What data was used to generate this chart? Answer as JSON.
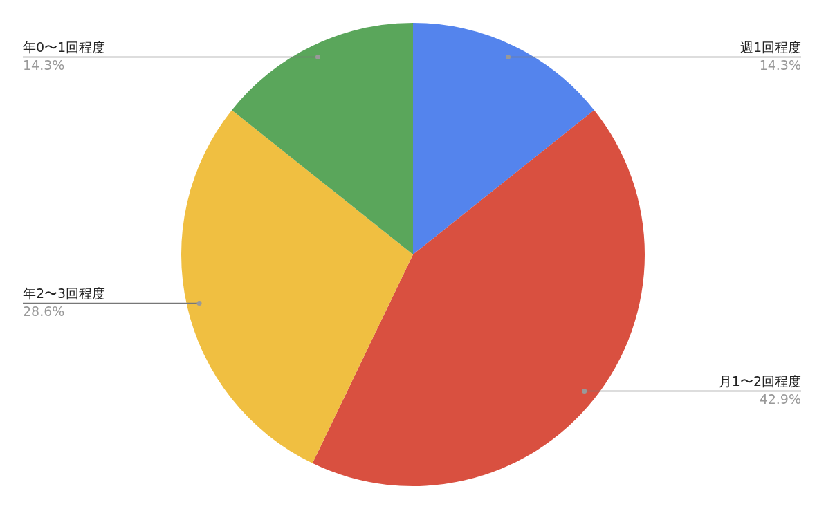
{
  "chart_data": {
    "type": "pie",
    "categories": [
      "週1回程度",
      "月1〜2回程度",
      "年2〜3回程度",
      "年0〜1回程度"
    ],
    "values": [
      14.3,
      42.9,
      28.6,
      14.3
    ],
    "colors": [
      "#5484ed",
      "#d95040",
      "#f0bf41",
      "#5aa65b"
    ],
    "value_labels": [
      "14.3%",
      "42.9%",
      "28.6%",
      "14.3%"
    ],
    "legend": false
  }
}
